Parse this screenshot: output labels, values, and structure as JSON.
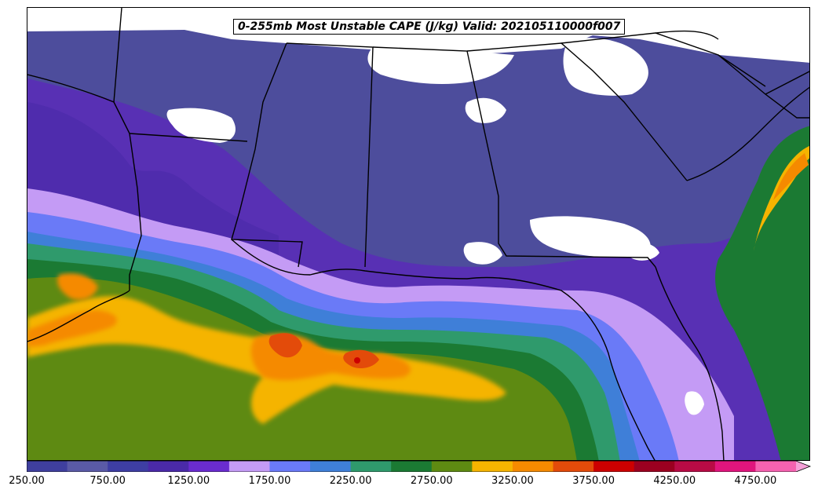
{
  "map": {
    "title": "0-255mb Most Unstable CAPE (J/kg) Valid: 202105110000f007"
  },
  "colorbar": {
    "min": 250,
    "max": 5000,
    "step": 250,
    "extend": "max",
    "colors": [
      "#3f3f9e",
      "#5a5aa6",
      "#3e3ea3",
      "#4a2aa8",
      "#6a2ccf",
      "#c49bf5",
      "#6a7af7",
      "#3f7fd8",
      "#2f9a6c",
      "#1b7a33",
      "#5e8a12",
      "#f5b400",
      "#f58a00",
      "#e34b0a",
      "#cc0000",
      "#9b0020",
      "#b80b45",
      "#e0157d",
      "#f562b0",
      "#f5a0d8"
    ],
    "tick_labels": [
      "250.00",
      "750.00",
      "1250.00",
      "1750.00",
      "2250.00",
      "2750.00",
      "3250.00",
      "3750.00",
      "4250.00",
      "4750.00"
    ]
  }
}
